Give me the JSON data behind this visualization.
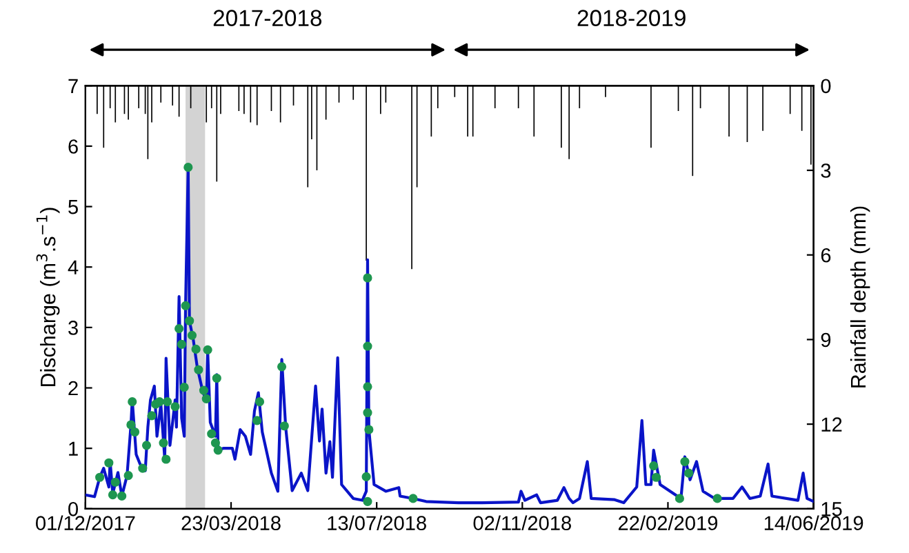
{
  "chart_data": {
    "type": "line",
    "ylabel": "Discharge (m$^{3}$.s$^{−1}$)",
    "y2label": "Rainfall depth (mm)",
    "annotations": [
      "2017-2018",
      "2018-2019"
    ],
    "xlim": [
      "2017-12-01",
      "2019-06-14"
    ],
    "xticks": [
      {
        "value": "2017-12-01",
        "label": "01/12/2017"
      },
      {
        "value": "2018-03-23",
        "label": "23/03/2018"
      },
      {
        "value": "2018-07-13",
        "label": "13/07/2018"
      },
      {
        "value": "2018-11-02",
        "label": "02/11/2018"
      },
      {
        "value": "2019-02-22",
        "label": "22/02/2019"
      },
      {
        "value": "2019-06-14",
        "label": "14/06/2019"
      }
    ],
    "ylim": [
      0,
      7
    ],
    "yticks": [
      0,
      1,
      2,
      3,
      4,
      5,
      6,
      7
    ],
    "y2lim": [
      15,
      0
    ],
    "y2ticks": [
      0,
      3,
      6,
      9,
      12,
      15
    ],
    "grid": false,
    "legend": false,
    "bands": [
      {
        "axis": "x",
        "from": "2018-02-16",
        "to": "2018-03-03",
        "color": "#d3d3d3"
      }
    ],
    "series": [
      {
        "type": "bar",
        "axis": "y2",
        "color": "#000000",
        "x": [
          "2017-12-10",
          "2017-12-15",
          "2017-12-20",
          "2017-12-24",
          "2017-12-31",
          "2018-01-03",
          "2018-01-11",
          "2018-01-16",
          "2018-01-18",
          "2018-01-21",
          "2018-01-28",
          "2018-02-06",
          "2018-02-11",
          "2018-02-20",
          "2018-03-04",
          "2018-03-08",
          "2018-03-12",
          "2018-03-15",
          "2018-03-29",
          "2018-04-02",
          "2018-04-07",
          "2018-04-12",
          "2018-04-23",
          "2018-04-30",
          "2018-05-10",
          "2018-05-21",
          "2018-05-24",
          "2018-05-28",
          "2018-06-04",
          "2018-06-14",
          "2018-06-25",
          "2018-07-05",
          "2018-07-16",
          "2018-07-20",
          "2018-08-09",
          "2018-08-13",
          "2018-08-24",
          "2018-08-29",
          "2018-09-11",
          "2018-09-21",
          "2018-09-25",
          "2018-10-12",
          "2018-10-30",
          "2018-11-11",
          "2018-12-02",
          "2018-12-08",
          "2018-12-16",
          "2019-01-05",
          "2019-02-09",
          "2019-03-02",
          "2019-03-13",
          "2019-03-19",
          "2019-04-10",
          "2019-04-24",
          "2019-05-06",
          "2019-05-27",
          "2019-06-05",
          "2019-06-12"
        ],
        "values": [
          1.0,
          2.2,
          0.8,
          1.3,
          1.0,
          1.2,
          0.8,
          1.0,
          2.6,
          1.3,
          0.6,
          0.7,
          1.1,
          0.8,
          1.3,
          0.8,
          3.4,
          1.0,
          0.9,
          1.0,
          1.3,
          1.4,
          0.9,
          1.3,
          0.7,
          3.6,
          1.9,
          3.0,
          1.2,
          0.6,
          0.5,
          6.2,
          1.0,
          0.6,
          6.5,
          3.6,
          1.8,
          0.8,
          0.4,
          1.8,
          1.8,
          0.8,
          0.8,
          1.8,
          2.2,
          2.6,
          0.8,
          0.4,
          2.2,
          0.9,
          3.2,
          0.8,
          1.8,
          2.0,
          1.6,
          1.0,
          1.6,
          2.8
        ]
      },
      {
        "marker": "none",
        "color": "#0a14c8",
        "x": [
          "2017-12-01",
          "2017-12-08",
          "2017-12-12",
          "2017-12-15",
          "2017-12-19",
          "2017-12-20",
          "2017-12-22",
          "2017-12-26",
          "2017-12-29",
          "2018-01-02",
          "2018-01-05",
          "2018-01-06",
          "2018-01-09",
          "2018-01-12",
          "2018-01-16",
          "2018-01-18",
          "2018-01-20",
          "2018-01-23",
          "2018-01-25",
          "2018-01-28",
          "2018-01-31",
          "2018-02-01",
          "2018-02-04",
          "2018-02-08",
          "2018-02-09",
          "2018-02-11",
          "2018-02-13",
          "2018-02-15",
          "2018-02-16",
          "2018-02-18",
          "2018-02-19",
          "2018-02-22",
          "2018-02-25",
          "2018-03-01",
          "2018-03-04",
          "2018-03-05",
          "2018-03-07",
          "2018-03-11",
          "2018-03-12",
          "2018-03-13",
          "2018-03-17",
          "2018-03-24",
          "2018-03-26",
          "2018-03-30",
          "2018-04-03",
          "2018-04-07",
          "2018-04-10",
          "2018-04-13",
          "2018-04-16",
          "2018-04-23",
          "2018-04-28",
          "2018-05-01",
          "2018-05-04",
          "2018-05-09",
          "2018-05-16",
          "2018-05-21",
          "2018-05-27",
          "2018-05-30",
          "2018-06-01",
          "2018-06-04",
          "2018-06-07",
          "2018-06-09",
          "2018-06-13",
          "2018-06-16",
          "2018-06-25",
          "2018-07-02",
          "2018-07-05",
          "2018-07-06",
          "2018-07-07",
          "2018-07-11",
          "2018-07-20",
          "2018-07-30",
          "2018-07-31",
          "2018-08-10",
          "2018-08-20",
          "2018-09-14",
          "2018-10-02",
          "2018-10-30",
          "2018-11-01",
          "2018-11-04",
          "2018-11-13",
          "2018-11-16",
          "2018-11-29",
          "2018-12-04",
          "2018-12-08",
          "2018-12-11",
          "2018-12-16",
          "2018-12-22",
          "2018-12-25",
          "2019-01-12",
          "2019-01-19",
          "2019-01-29",
          "2019-02-02",
          "2019-02-05",
          "2019-02-09",
          "2019-02-11",
          "2019-02-16",
          "2019-03-04",
          "2019-03-07",
          "2019-03-11",
          "2019-03-16",
          "2019-03-21",
          "2019-03-30",
          "2019-04-13",
          "2019-04-20",
          "2019-04-26",
          "2019-05-04",
          "2019-05-10",
          "2019-05-13",
          "2019-06-02",
          "2019-06-06",
          "2019-06-09",
          "2019-06-14"
        ],
        "values": [
          0.23,
          0.2,
          0.52,
          0.67,
          0.36,
          0.78,
          0.25,
          0.6,
          0.21,
          0.55,
          1.39,
          1.8,
          0.9,
          0.74,
          0.63,
          1.35,
          1.8,
          2.03,
          1.2,
          1.73,
          0.82,
          2.49,
          1.05,
          1.8,
          1.35,
          3.51,
          1.5,
          1.2,
          3.36,
          5.65,
          3.11,
          2.79,
          2.34,
          1.96,
          1.77,
          2.63,
          1.43,
          1.2,
          2.22,
          0.97,
          1.0,
          1.0,
          0.82,
          1.31,
          1.2,
          0.9,
          1.62,
          1.92,
          1.27,
          0.59,
          0.29,
          2.47,
          1.35,
          0.3,
          0.59,
          0.3,
          2.03,
          1.12,
          1.65,
          0.59,
          1.11,
          0.52,
          2.5,
          0.4,
          0.17,
          0.14,
          0.29,
          4.12,
          1.31,
          0.4,
          0.29,
          0.35,
          0.21,
          0.17,
          0.12,
          0.1,
          0.1,
          0.11,
          0.29,
          0.14,
          0.23,
          0.1,
          0.14,
          0.35,
          0.17,
          0.1,
          0.17,
          0.78,
          0.17,
          0.15,
          0.1,
          0.36,
          1.46,
          0.4,
          0.4,
          0.97,
          0.4,
          0.17,
          0.86,
          0.48,
          0.78,
          0.29,
          0.17,
          0.17,
          0.36,
          0.17,
          0.21,
          0.74,
          0.21,
          0.14,
          0.59,
          0.17,
          0.12
        ]
      },
      {
        "type": "scatter",
        "marker": "circle",
        "color": "#1e9650",
        "x": [
          "2017-12-12",
          "2017-12-19",
          "2017-12-22",
          "2017-12-24",
          "2017-12-29",
          "2018-01-03",
          "2018-01-05",
          "2018-01-06",
          "2018-01-08",
          "2018-01-14",
          "2018-01-17",
          "2018-01-21",
          "2018-01-24",
          "2018-01-27",
          "2018-01-30",
          "2018-02-01",
          "2018-02-02",
          "2018-02-08",
          "2018-02-11",
          "2018-02-13",
          "2018-02-15",
          "2018-02-16",
          "2018-02-18",
          "2018-02-19",
          "2018-02-21",
          "2018-02-24",
          "2018-02-26",
          "2018-03-02",
          "2018-03-04",
          "2018-03-05",
          "2018-03-08",
          "2018-03-11",
          "2018-03-12",
          "2018-03-13",
          "2018-04-12",
          "2018-04-14",
          "2018-05-01",
          "2018-05-03",
          "2018-07-05",
          "2018-07-06",
          "2018-07-06",
          "2018-07-06",
          "2018-07-06",
          "2018-07-07",
          "2018-07-06",
          "2018-08-10",
          "2019-02-11",
          "2019-02-13",
          "2019-03-03",
          "2019-03-07",
          "2019-03-10",
          "2019-04-01"
        ],
        "values": [
          0.52,
          0.76,
          0.23,
          0.44,
          0.21,
          0.55,
          1.39,
          1.77,
          1.27,
          0.67,
          1.05,
          1.54,
          1.73,
          1.77,
          1.09,
          0.82,
          1.77,
          1.69,
          2.98,
          2.72,
          2.01,
          3.36,
          5.65,
          3.11,
          2.87,
          2.64,
          2.3,
          1.96,
          1.82,
          2.63,
          1.24,
          1.09,
          2.16,
          0.97,
          1.46,
          1.77,
          2.35,
          1.37,
          0.53,
          3.82,
          2.69,
          2.02,
          1.59,
          1.31,
          0.12,
          0.17,
          0.71,
          0.52,
          0.17,
          0.78,
          0.59,
          0.17
        ]
      }
    ]
  }
}
